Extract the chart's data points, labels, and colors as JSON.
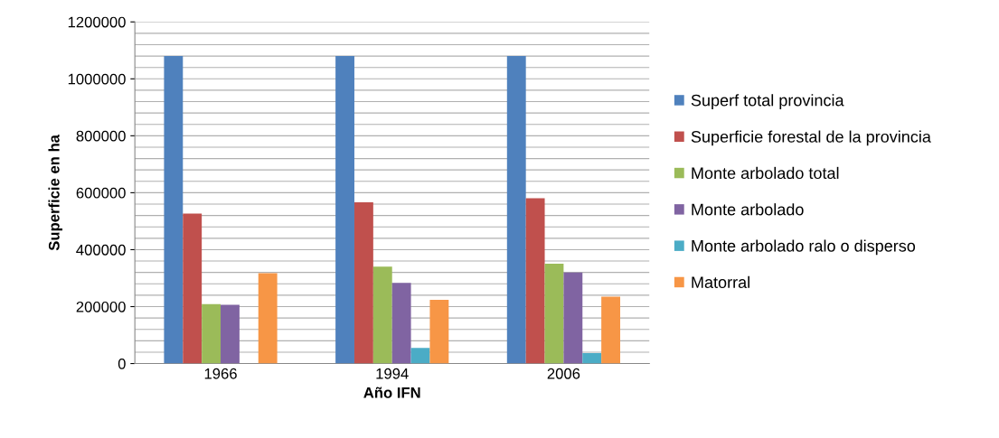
{
  "chart_data": {
    "type": "bar",
    "xlabel": "Año IFN",
    "ylabel": "Superficie en ha",
    "categories": [
      "1966",
      "1994",
      "2006"
    ],
    "series": [
      {
        "name": "Superf total provincia",
        "color": "#4f81bd",
        "values": [
          1080000,
          1080000,
          1080000
        ]
      },
      {
        "name": "Superficie forestal de la provincia",
        "color": "#c0504d",
        "values": [
          527000,
          566000,
          581000
        ]
      },
      {
        "name": "Monte arbolado total",
        "color": "#9bbb59",
        "values": [
          209000,
          340000,
          351000
        ]
      },
      {
        "name": "Monte arbolado",
        "color": "#8064a2",
        "values": [
          206000,
          283000,
          320000
        ]
      },
      {
        "name": "Monte arbolado ralo o disperso",
        "color": "#4bacc6",
        "values": [
          null,
          55000,
          37000
        ]
      },
      {
        "name": "Matorral",
        "color": "#f79646",
        "values": [
          317000,
          224000,
          235000
        ]
      }
    ],
    "ylim": [
      0,
      1200000
    ],
    "yticks": [
      0,
      {
        "value": 40000,
        "label": null
      },
      {
        "value": 80000,
        "label": null
      },
      {
        "value": 120000,
        "label": null
      },
      {
        "value": 160000,
        "label": null
      },
      200000,
      {
        "value": 240000,
        "label": null
      },
      {
        "value": 280000,
        "label": null
      },
      {
        "value": 320000,
        "label": null
      },
      {
        "value": 360000,
        "label": null
      },
      400000,
      {
        "value": 440000,
        "label": null
      },
      {
        "value": 480000,
        "label": null
      },
      {
        "value": 520000,
        "label": null
      },
      {
        "value": 560000,
        "label": null
      },
      600000,
      {
        "value": 640000,
        "label": null
      },
      {
        "value": 680000,
        "label": null
      },
      {
        "value": 720000,
        "label": null
      },
      {
        "value": 760000,
        "label": null
      },
      800000,
      {
        "value": 840000,
        "label": null
      },
      {
        "value": 880000,
        "label": null
      },
      {
        "value": 920000,
        "label": null
      },
      {
        "value": 960000,
        "label": null
      },
      1000000,
      {
        "value": 1040000,
        "label": null
      },
      {
        "value": 1080000,
        "label": null
      },
      {
        "value": 1120000,
        "label": null
      },
      {
        "value": 1160000,
        "label": null
      },
      1200000
    ],
    "grid": "y",
    "legend": "right"
  }
}
